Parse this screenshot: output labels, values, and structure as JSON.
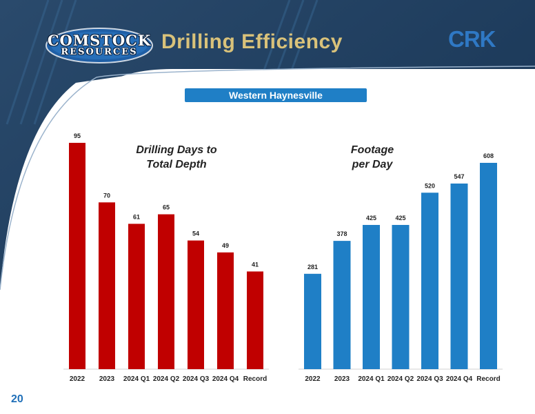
{
  "header": {
    "logo_line1": "COMSTOCK",
    "logo_line2": "RESOURCES",
    "title": "Drilling Efficiency",
    "ticker": "CRK"
  },
  "section_banner": "Western Haynesville",
  "page_number": "20",
  "colors": {
    "header_bg": "#1d3d5e",
    "days_bar": "#c00000",
    "footage_bar": "#1f7fc6",
    "title_gold": "#d9c27a"
  },
  "chart_data": [
    {
      "type": "bar",
      "title_lines": [
        "Drilling Days to",
        "Total Depth"
      ],
      "categories": [
        "2022",
        "2023",
        "2024 Q1",
        "2024 Q2",
        "2024 Q3",
        "2024 Q4",
        "Record"
      ],
      "values": [
        95,
        70,
        61,
        65,
        54,
        49,
        41
      ],
      "value_labels": [
        "95",
        "70",
        "61",
        "65",
        "54",
        "49",
        "41"
      ],
      "ylim": [
        0,
        95
      ],
      "grid": false,
      "color": "#c00000"
    },
    {
      "type": "bar",
      "title_lines": [
        "Footage",
        "per Day"
      ],
      "categories": [
        "2022",
        "2023",
        "2024 Q1",
        "2024 Q2",
        "2024 Q3",
        "2024 Q4",
        "Record"
      ],
      "values": [
        281,
        378,
        425,
        425,
        520,
        547,
        608
      ],
      "value_labels": [
        "281",
        "378",
        "425",
        "425",
        "520",
        "547",
        "608"
      ],
      "ylim": [
        0,
        608
      ],
      "grid": false,
      "color": "#1f7fc6"
    }
  ]
}
